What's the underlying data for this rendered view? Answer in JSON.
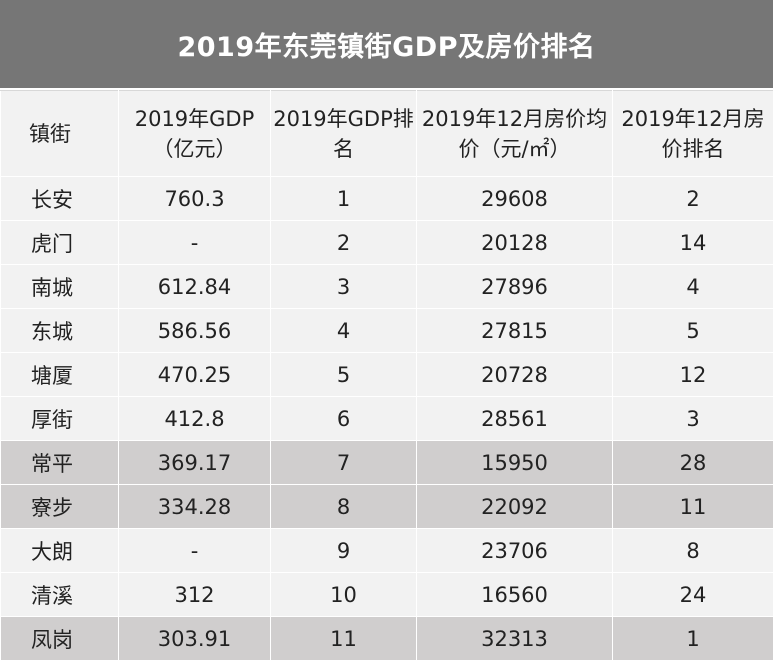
{
  "title": "2019年东莞镇街GDP及房价排名",
  "headers": [
    "镇街",
    "2019年GDP（亿元）",
    "2019年GDP排名",
    "2019年12月房价均价（元/㎡）",
    "2019年12月房价排名"
  ],
  "rows": [
    {
      "town": "长安",
      "gdp": "760.3",
      "gdp_rank": "1",
      "price": "29608",
      "price_rank": "2",
      "highlight": false
    },
    {
      "town": "虎门",
      "gdp": "-",
      "gdp_rank": "2",
      "price": "20128",
      "price_rank": "14",
      "highlight": false
    },
    {
      "town": "南城",
      "gdp": "612.84",
      "gdp_rank": "3",
      "price": "27896",
      "price_rank": "4",
      "highlight": false
    },
    {
      "town": "东城",
      "gdp": "586.56",
      "gdp_rank": "4",
      "price": "27815",
      "price_rank": "5",
      "highlight": false
    },
    {
      "town": "塘厦",
      "gdp": "470.25",
      "gdp_rank": "5",
      "price": "20728",
      "price_rank": "12",
      "highlight": false
    },
    {
      "town": "厚街",
      "gdp": "412.8",
      "gdp_rank": "6",
      "price": "28561",
      "price_rank": "3",
      "highlight": false
    },
    {
      "town": "常平",
      "gdp": "369.17",
      "gdp_rank": "7",
      "price": "15950",
      "price_rank": "28",
      "highlight": true
    },
    {
      "town": "寮步",
      "gdp": "334.28",
      "gdp_rank": "8",
      "price": "22092",
      "price_rank": "11",
      "highlight": true
    },
    {
      "town": "大朗",
      "gdp": "-",
      "gdp_rank": "9",
      "price": "23706",
      "price_rank": "8",
      "highlight": false
    },
    {
      "town": "清溪",
      "gdp": "312",
      "gdp_rank": "10",
      "price": "16560",
      "price_rank": "24",
      "highlight": false
    },
    {
      "town": "凤岗",
      "gdp": "303.91",
      "gdp_rank": "11",
      "price": "32313",
      "price_rank": "1",
      "highlight": true
    }
  ]
}
